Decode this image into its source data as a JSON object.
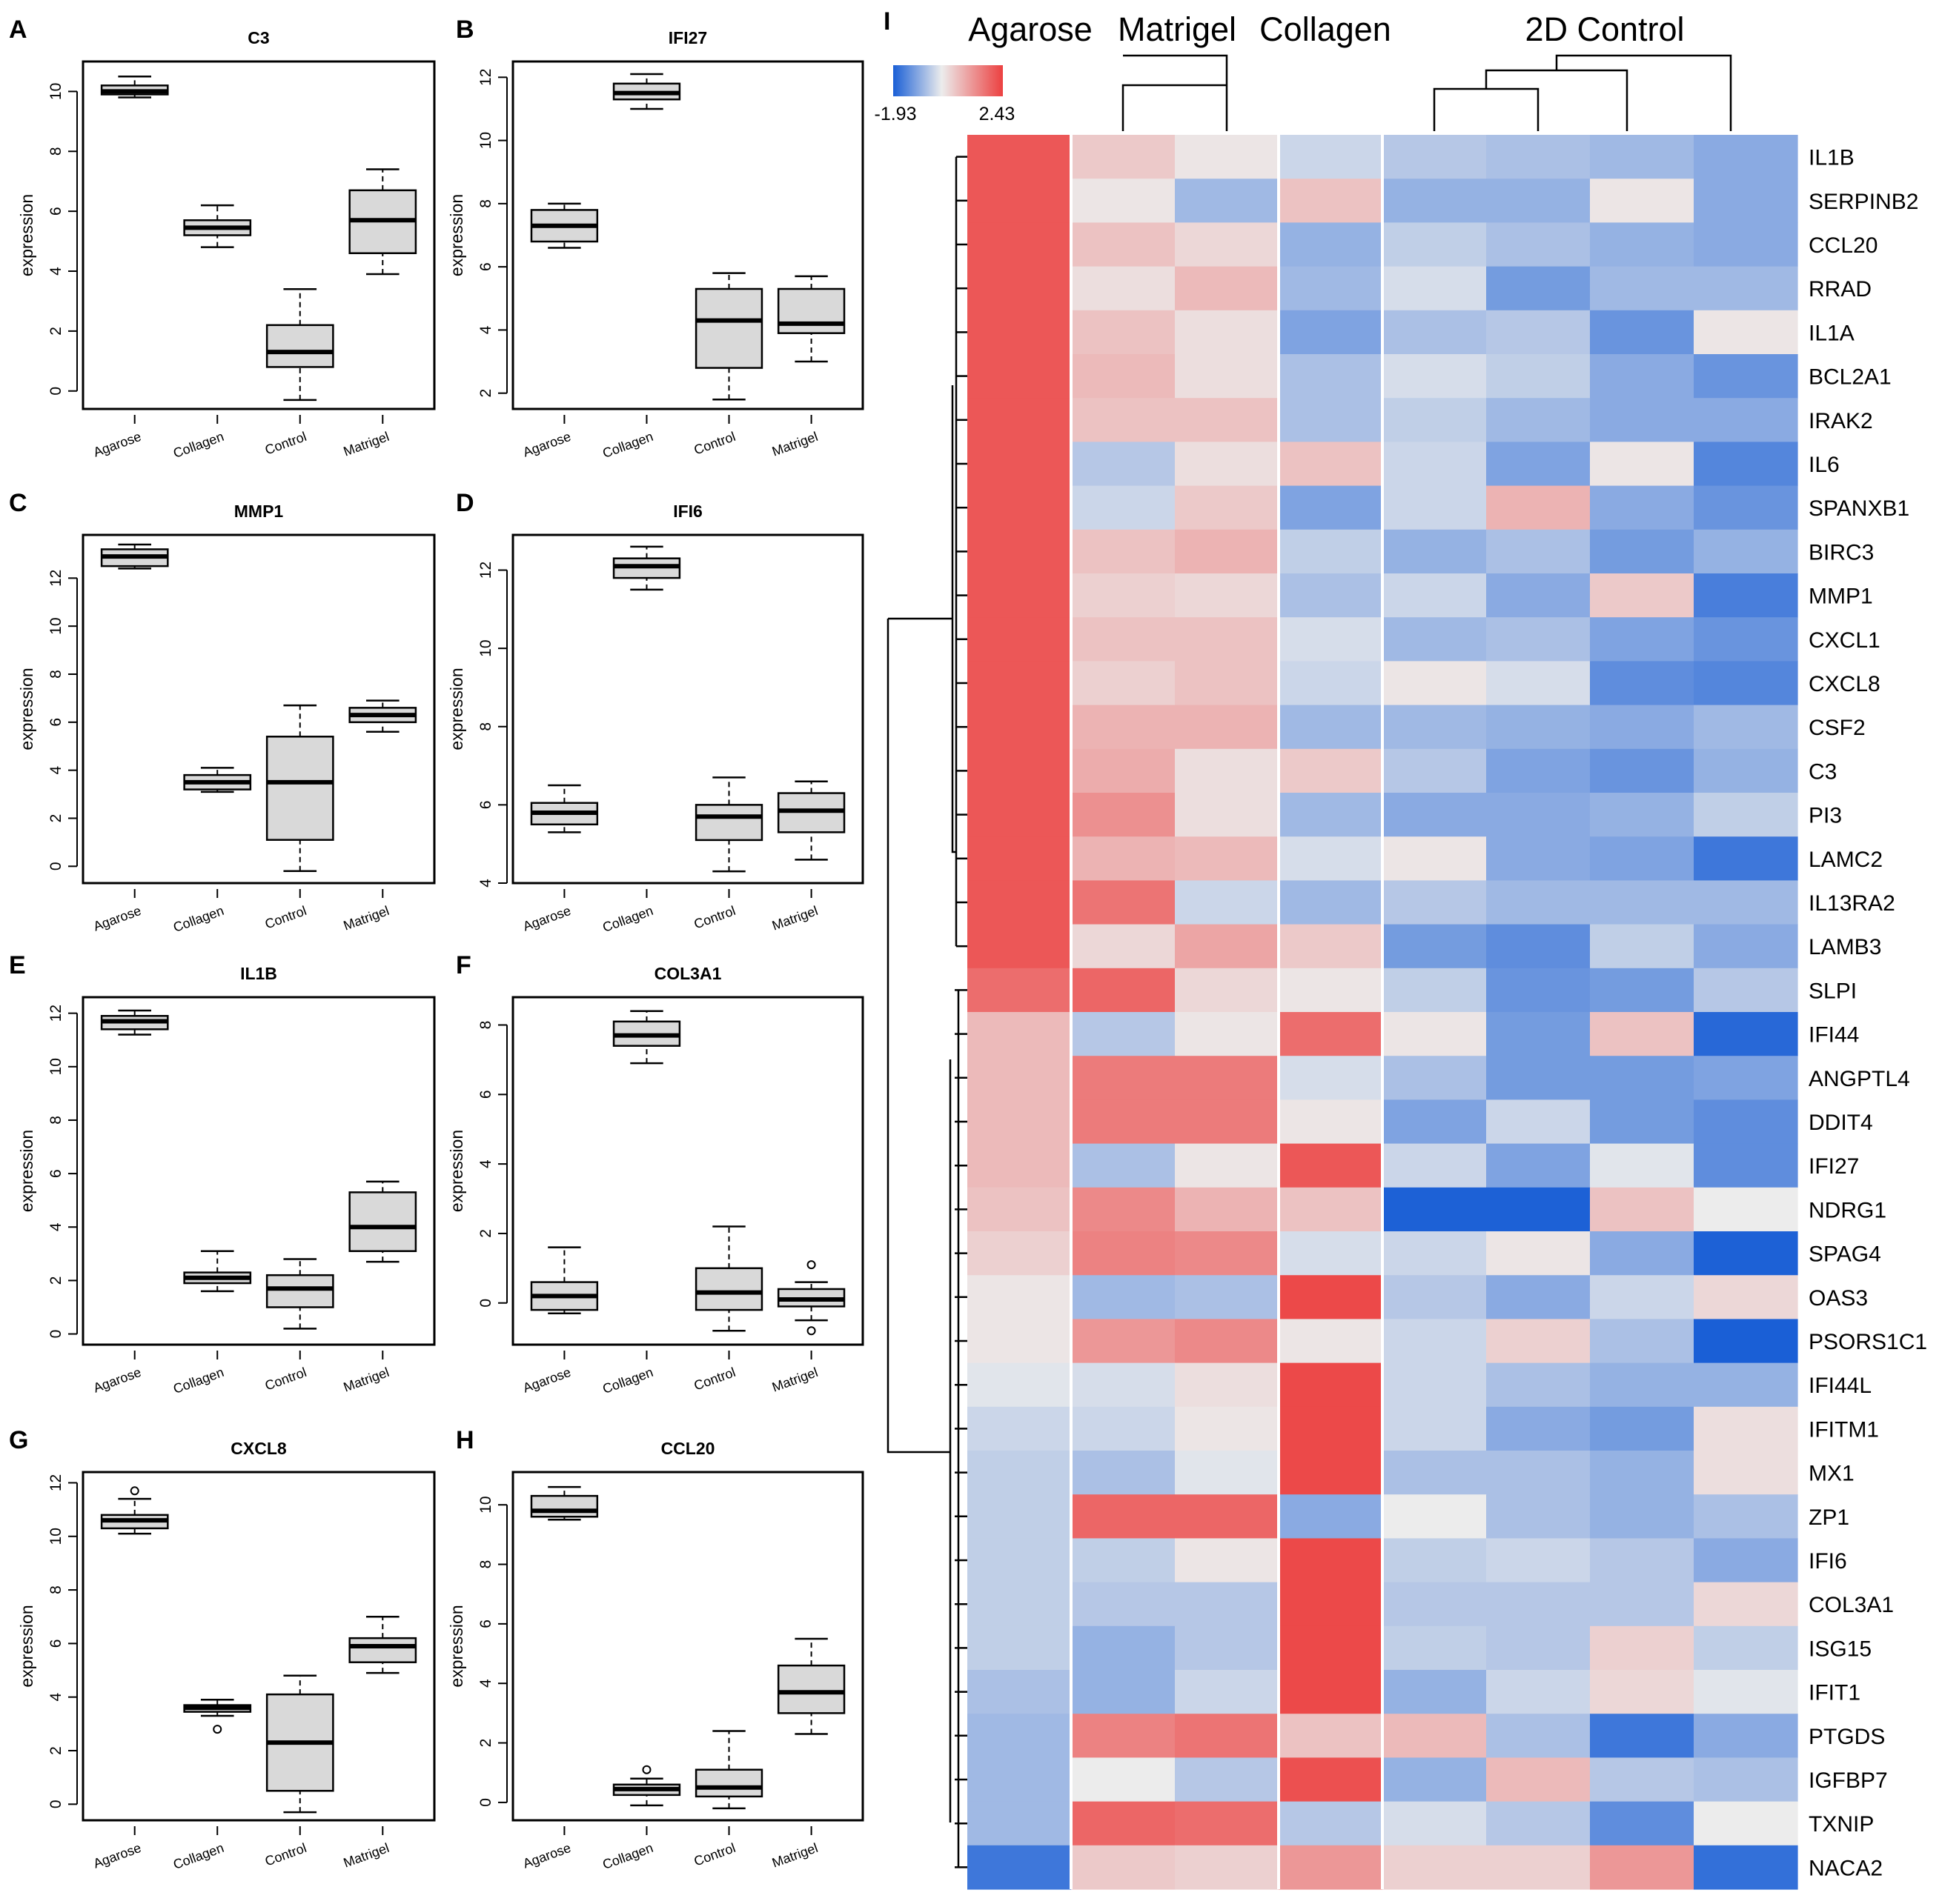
{
  "panel_letters": {
    "A": "A",
    "B": "B",
    "C": "C",
    "D": "D",
    "E": "E",
    "F": "F",
    "G": "G",
    "H": "H",
    "I": "I"
  },
  "chart_data": [
    {
      "id": "A",
      "type": "boxplot",
      "title": "C3",
      "ylabel": "expression",
      "ylim": [
        -0.6,
        11
      ],
      "yticks": [
        0,
        2,
        4,
        6,
        8,
        10
      ],
      "categories": [
        "Agarose",
        "Collagen",
        "Control",
        "Matrigel"
      ],
      "boxes": [
        {
          "min": 9.8,
          "q1": 9.9,
          "med": 10,
          "q3": 10.2,
          "max": 10.5
        },
        {
          "min": 4.8,
          "q1": 5.2,
          "med": 5.45,
          "q3": 5.7,
          "max": 6.2
        },
        {
          "min": -0.3,
          "q1": 0.8,
          "med": 1.3,
          "q3": 2.2,
          "max": 3.4
        },
        {
          "min": 3.9,
          "q1": 4.6,
          "med": 5.7,
          "q3": 6.7,
          "max": 7.4
        }
      ],
      "outliers": []
    },
    {
      "id": "B",
      "type": "boxplot",
      "title": "IFI27",
      "ylabel": "expression",
      "ylim": [
        1.5,
        12.5
      ],
      "yticks": [
        2,
        4,
        6,
        8,
        10,
        12
      ],
      "categories": [
        "Agarose",
        "Collagen",
        "Control",
        "Matrigel"
      ],
      "boxes": [
        {
          "min": 6.6,
          "q1": 6.8,
          "med": 7.3,
          "q3": 7.8,
          "max": 8
        },
        {
          "min": 11,
          "q1": 11.3,
          "med": 11.5,
          "q3": 11.8,
          "max": 12.1
        },
        {
          "min": 1.8,
          "q1": 2.8,
          "med": 4.3,
          "q3": 5.3,
          "max": 5.8
        },
        {
          "min": 3,
          "q1": 3.9,
          "med": 4.2,
          "q3": 5.3,
          "max": 5.7
        }
      ],
      "outliers": []
    },
    {
      "id": "C",
      "type": "boxplot",
      "title": "MMP1",
      "ylabel": "expression",
      "ylim": [
        -0.7,
        13.8
      ],
      "yticks": [
        0,
        2,
        4,
        6,
        8,
        10,
        12
      ],
      "categories": [
        "Agarose",
        "Collagen",
        "Control",
        "Matrigel"
      ],
      "boxes": [
        {
          "min": 12.4,
          "q1": 12.5,
          "med": 12.9,
          "q3": 13.2,
          "max": 13.4
        },
        {
          "min": 3.1,
          "q1": 3.2,
          "med": 3.5,
          "q3": 3.8,
          "max": 4.1
        },
        {
          "min": -0.2,
          "q1": 1.1,
          "med": 3.5,
          "q3": 5.4,
          "max": 6.7
        },
        {
          "min": 5.6,
          "q1": 6,
          "med": 6.3,
          "q3": 6.6,
          "max": 6.9
        }
      ],
      "outliers": []
    },
    {
      "id": "D",
      "type": "boxplot",
      "title": "IFI6",
      "ylabel": "expression",
      "ylim": [
        4,
        12.9
      ],
      "yticks": [
        4,
        6,
        8,
        10,
        12
      ],
      "categories": [
        "Agarose",
        "Collagen",
        "Control",
        "Matrigel"
      ],
      "boxes": [
        {
          "min": 5.3,
          "q1": 5.5,
          "med": 5.8,
          "q3": 6.05,
          "max": 6.5
        },
        {
          "min": 11.5,
          "q1": 11.8,
          "med": 12.1,
          "q3": 12.3,
          "max": 12.6
        },
        {
          "min": 4.3,
          "q1": 5.1,
          "med": 5.7,
          "q3": 6,
          "max": 6.7
        },
        {
          "min": 4.6,
          "q1": 5.3,
          "med": 5.85,
          "q3": 6.3,
          "max": 6.6
        }
      ],
      "outliers": []
    },
    {
      "id": "E",
      "type": "boxplot",
      "title": "IL1B",
      "ylabel": "expression",
      "ylim": [
        -0.4,
        12.6
      ],
      "yticks": [
        0,
        2,
        4,
        6,
        8,
        10,
        12
      ],
      "categories": [
        "Agarose",
        "Collagen",
        "Control",
        "Matrigel"
      ],
      "boxes": [
        {
          "min": 11.2,
          "q1": 11.4,
          "med": 11.7,
          "q3": 11.9,
          "max": 12.1
        },
        {
          "min": 1.6,
          "q1": 1.9,
          "med": 2.1,
          "q3": 2.3,
          "max": 3.1
        },
        {
          "min": 0.2,
          "q1": 1,
          "med": 1.7,
          "q3": 2.2,
          "max": 2.8
        },
        {
          "min": 2.7,
          "q1": 3.1,
          "med": 4,
          "q3": 5.3,
          "max": 5.7
        }
      ],
      "outliers": []
    },
    {
      "id": "F",
      "type": "boxplot",
      "title": "COL3A1",
      "ylabel": "expression",
      "ylim": [
        -1.2,
        8.8
      ],
      "yticks": [
        0,
        2,
        4,
        6,
        8
      ],
      "categories": [
        "Agarose",
        "Collagen",
        "Control",
        "Matrigel"
      ],
      "boxes": [
        {
          "min": -0.3,
          "q1": -0.2,
          "med": 0.2,
          "q3": 0.6,
          "max": 1.6
        },
        {
          "min": 6.9,
          "q1": 7.4,
          "med": 7.7,
          "q3": 8.1,
          "max": 8.4
        },
        {
          "min": -0.8,
          "q1": -0.2,
          "med": 0.3,
          "q3": 1,
          "max": 2.2
        },
        {
          "min": -0.5,
          "q1": -0.1,
          "med": 0.1,
          "q3": 0.4,
          "max": 0.6
        }
      ],
      "outliers": [
        {
          "box": 3,
          "value": 1.1
        },
        {
          "box": 3,
          "value": -0.8
        }
      ]
    },
    {
      "id": "G",
      "type": "boxplot",
      "title": "CXCL8",
      "ylabel": "expression",
      "ylim": [
        -0.6,
        12.4
      ],
      "yticks": [
        0,
        2,
        4,
        6,
        8,
        10,
        12
      ],
      "categories": [
        "Agarose",
        "Collagen",
        "Control",
        "Matrigel"
      ],
      "boxes": [
        {
          "min": 10.1,
          "q1": 10.3,
          "med": 10.6,
          "q3": 10.8,
          "max": 11.4
        },
        {
          "min": 3.3,
          "q1": 3.45,
          "med": 3.6,
          "q3": 3.7,
          "max": 3.9
        },
        {
          "min": -0.3,
          "q1": 0.5,
          "med": 2.3,
          "q3": 4.1,
          "max": 4.8
        },
        {
          "min": 4.9,
          "q1": 5.3,
          "med": 5.9,
          "q3": 6.2,
          "max": 7
        }
      ],
      "outliers": [
        {
          "box": 0,
          "value": 11.7
        },
        {
          "box": 1,
          "value": 2.8
        }
      ]
    },
    {
      "id": "H",
      "type": "boxplot",
      "title": "CCL20",
      "ylabel": "expression",
      "ylim": [
        -0.6,
        11.1
      ],
      "yticks": [
        0,
        2,
        4,
        6,
        8,
        10
      ],
      "categories": [
        "Agarose",
        "Collagen",
        "Control",
        "Matrigel"
      ],
      "boxes": [
        {
          "min": 9.5,
          "q1": 9.6,
          "med": 9.8,
          "q3": 10.3,
          "max": 10.6
        },
        {
          "min": -0.1,
          "q1": 0.25,
          "med": 0.45,
          "q3": 0.6,
          "max": 0.8
        },
        {
          "min": -0.2,
          "q1": 0.2,
          "med": 0.5,
          "q3": 1.1,
          "max": 2.4
        },
        {
          "min": 2.3,
          "q1": 3,
          "med": 3.7,
          "q3": 4.6,
          "max": 5.5
        }
      ],
      "outliers": [
        {
          "box": 1,
          "value": 1.1
        }
      ]
    },
    {
      "id": "I",
      "type": "heatmap",
      "title": "",
      "column_groups": [
        {
          "label": "Agarose",
          "cols": [
            0,
            0
          ]
        },
        {
          "label": "Matrigel",
          "cols": [
            1,
            2
          ]
        },
        {
          "label": "Collagen",
          "cols": [
            3,
            3
          ]
        },
        {
          "label": "2D Control",
          "cols": [
            4,
            7
          ]
        }
      ],
      "colorscale": {
        "min": -1.93,
        "max": 2.43,
        "low_color": "#1a5fd6",
        "mid_color": "#ececec",
        "high_color": "#ec4040",
        "min_label": "-1.93",
        "max_label": "2.43"
      },
      "genes": [
        "IL1B",
        "SERPINB2",
        "CCL20",
        "RRAD",
        "IL1A",
        "BCL2A1",
        "IRAK2",
        "IL6",
        "SPANXB1",
        "BIRC3",
        "MMP1",
        "CXCL1",
        "CXCL8",
        "CSF2",
        "C3",
        "PI3",
        "LAMC2",
        "IL13RA2",
        "LAMB3",
        "SLPI",
        "IFI44",
        "ANGPTL4",
        "DDIT4",
        "IFI27",
        "NDRG1",
        "SPAG4",
        "OAS3",
        "PSORS1C1",
        "IFI44L",
        "IFITM1",
        "MX1",
        "ZP1",
        "IFI6",
        "COL3A1",
        "ISG15",
        "IFIT1",
        "PTGDS",
        "IGFBP7",
        "TXNIP",
        "NACA2"
      ],
      "values": [
        [
          2.1,
          0.5,
          0.1,
          -0.3,
          -0.5,
          -0.6,
          -0.7,
          -0.9
        ],
        [
          2.1,
          0.1,
          -0.7,
          0.6,
          -0.8,
          -0.8,
          0.1,
          -0.9
        ],
        [
          2.1,
          0.6,
          0.3,
          -0.8,
          -0.4,
          -0.6,
          -0.8,
          -0.9
        ],
        [
          2.1,
          0.2,
          0.7,
          -0.7,
          -0.2,
          -1.1,
          -0.7,
          -0.7
        ],
        [
          2.1,
          0.6,
          0.2,
          -1,
          -0.6,
          -0.5,
          -1.2,
          0.1
        ],
        [
          2.1,
          0.7,
          0.2,
          -0.6,
          -0.2,
          -0.4,
          -0.9,
          -1.2
        ],
        [
          2.1,
          0.6,
          0.6,
          -0.6,
          -0.4,
          -0.7,
          -0.9,
          -0.9
        ],
        [
          2.1,
          -0.5,
          0.2,
          0.6,
          -0.3,
          -1,
          0.1,
          -1.4
        ],
        [
          2.1,
          -0.3,
          0.5,
          -1,
          -0.3,
          0.8,
          -0.9,
          -1.2
        ],
        [
          2.1,
          0.6,
          0.8,
          -0.4,
          -0.8,
          -0.6,
          -1.1,
          -0.8
        ],
        [
          2.1,
          0.4,
          0.3,
          -0.6,
          -0.3,
          -0.9,
          0.5,
          -1.5
        ],
        [
          2.1,
          0.6,
          0.6,
          -0.2,
          -0.7,
          -0.6,
          -1,
          -1.2
        ],
        [
          2.1,
          0.4,
          0.6,
          -0.3,
          0.1,
          -0.2,
          -1.3,
          -1.4
        ],
        [
          2.1,
          0.8,
          0.8,
          -0.7,
          -0.7,
          -0.8,
          -0.9,
          -0.7
        ],
        [
          2.1,
          0.9,
          0.2,
          0.5,
          -0.5,
          -1,
          -1.2,
          -0.8
        ],
        [
          2.1,
          1.3,
          0.2,
          -0.7,
          -0.9,
          -0.9,
          -0.8,
          -0.4
        ],
        [
          2.1,
          0.8,
          0.7,
          -0.2,
          0.1,
          -0.9,
          -1,
          -1.6
        ],
        [
          2.1,
          1.7,
          -0.3,
          -0.7,
          -0.5,
          -0.7,
          -0.7,
          -0.7
        ],
        [
          2.1,
          0.3,
          1.0,
          0.5,
          -1.1,
          -1.3,
          -0.4,
          -0.9
        ],
        [
          1.8,
          1.9,
          0.3,
          0.1,
          -0.4,
          -1.2,
          -1.1,
          -0.5
        ],
        [
          0.7,
          -0.5,
          0.1,
          1.8,
          0.1,
          -1.1,
          0.6,
          -1.8
        ],
        [
          0.7,
          1.6,
          1.6,
          -0.2,
          -0.6,
          -1.1,
          -1.1,
          -1
        ],
        [
          0.7,
          1.6,
          1.6,
          0.1,
          -1,
          -0.3,
          -1.1,
          -1.3
        ],
        [
          0.7,
          -0.6,
          0.1,
          2.1,
          -0.3,
          -1,
          -0.1,
          -1.3
        ],
        [
          0.6,
          1.4,
          0.8,
          0.6,
          -1.9,
          -1.9,
          0.6,
          0
        ],
        [
          0.4,
          1.5,
          1.4,
          -0.2,
          -0.3,
          0.1,
          -0.9,
          -1.9
        ],
        [
          0.1,
          -0.7,
          -0.6,
          2.3,
          -0.5,
          -0.9,
          -0.3,
          0.3
        ],
        [
          0.1,
          1.2,
          1.4,
          0.1,
          -0.3,
          0.4,
          -0.6,
          -2.4
        ],
        [
          -0.1,
          -0.2,
          0.2,
          2.3,
          -0.3,
          -0.6,
          -0.8,
          -0.8
        ],
        [
          -0.3,
          -0.3,
          0.1,
          2.3,
          -0.3,
          -0.9,
          -1.1,
          0.2
        ],
        [
          -0.4,
          -0.6,
          -0.1,
          2.3,
          -0.6,
          -0.6,
          -0.8,
          0.2
        ],
        [
          -0.4,
          1.9,
          1.9,
          -0.9,
          0,
          -0.6,
          -0.8,
          -0.6
        ],
        [
          -0.4,
          -0.4,
          0.1,
          2.3,
          -0.4,
          -0.3,
          -0.5,
          -0.9
        ],
        [
          -0.4,
          -0.5,
          -0.5,
          2.3,
          -0.5,
          -0.5,
          -0.5,
          0.3
        ],
        [
          -0.4,
          -0.8,
          -0.5,
          2.3,
          -0.4,
          -0.5,
          0.4,
          -0.4
        ],
        [
          -0.6,
          -0.8,
          -0.3,
          2.3,
          -0.8,
          -0.3,
          0.3,
          -0.1
        ],
        [
          -0.7,
          1.5,
          1.7,
          0.6,
          0.7,
          -0.6,
          -1.6,
          -0.9
        ],
        [
          -0.7,
          0.0,
          -0.5,
          2.2,
          -0.8,
          0.7,
          -0.5,
          -0.6
        ],
        [
          -0.7,
          1.9,
          1.8,
          -0.5,
          -0.2,
          -0.5,
          -1.3,
          0
        ],
        [
          -1.6,
          0.5,
          0.4,
          1.2,
          0.4,
          0.4,
          1.2,
          -1.7
        ]
      ]
    }
  ]
}
